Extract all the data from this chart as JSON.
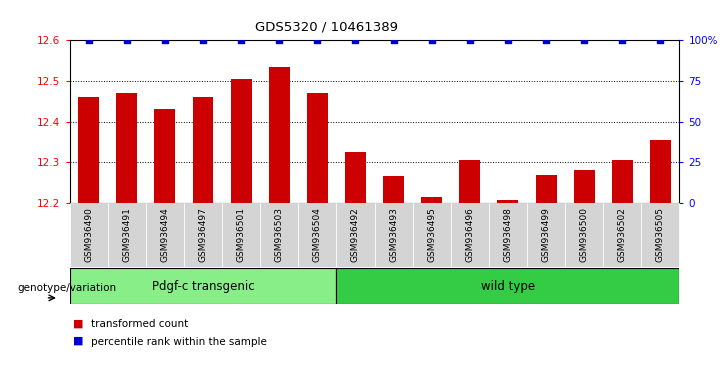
{
  "title": "GDS5320 / 10461389",
  "categories": [
    "GSM936490",
    "GSM936491",
    "GSM936494",
    "GSM936497",
    "GSM936501",
    "GSM936503",
    "GSM936504",
    "GSM936492",
    "GSM936493",
    "GSM936495",
    "GSM936496",
    "GSM936498",
    "GSM936499",
    "GSM936500",
    "GSM936502",
    "GSM936505"
  ],
  "bar_values_full": [
    12.46,
    12.47,
    12.43,
    12.46,
    12.505,
    12.535,
    12.47,
    12.325,
    12.265,
    12.215,
    12.305,
    12.207,
    12.268,
    12.28,
    12.305,
    12.355
  ],
  "bar_color": "#cc0000",
  "percentile_color": "#0000cc",
  "ylim_left": [
    12.2,
    12.6
  ],
  "ylim_right": [
    0,
    100
  ],
  "yticks_left": [
    12.2,
    12.3,
    12.4,
    12.5,
    12.6
  ],
  "yticks_right": [
    0,
    25,
    50,
    75,
    100
  ],
  "ytick_labels_right": [
    "0",
    "25",
    "50",
    "75",
    "100%"
  ],
  "group1_label": "Pdgf-c transgenic",
  "group2_label": "wild type",
  "group1_color": "#88ee88",
  "group2_color": "#33cc44",
  "group1_count": 7,
  "group2_count": 9,
  "xlabel_genotype": "genotype/variation",
  "legend_bar_label": "transformed count",
  "legend_percentile_label": "percentile rank within the sample",
  "bar_base": 12.2,
  "dotted_gridlines": [
    12.3,
    12.4,
    12.5
  ]
}
